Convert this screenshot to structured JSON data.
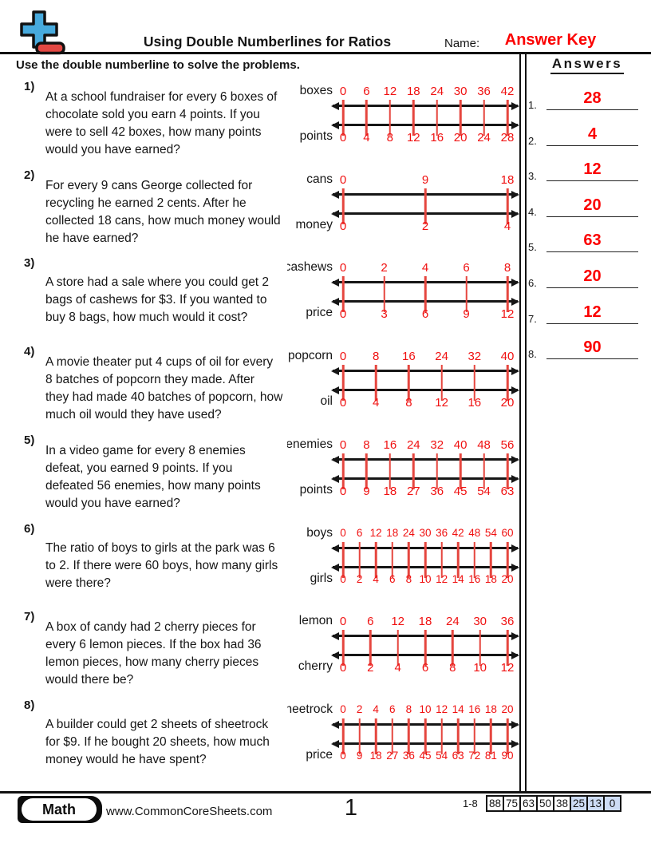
{
  "header": {
    "title": "Using Double Numberlines for Ratios",
    "name_label": "Name:",
    "name_value": "Answer Key",
    "instruction": "Use the double numberline to solve the problems."
  },
  "answers_panel": {
    "title": "Answers",
    "items": [
      {
        "num": "1.",
        "value": "28"
      },
      {
        "num": "2.",
        "value": "4"
      },
      {
        "num": "3.",
        "value": "12"
      },
      {
        "num": "4.",
        "value": "20"
      },
      {
        "num": "5.",
        "value": "63"
      },
      {
        "num": "6.",
        "value": "20"
      },
      {
        "num": "7.",
        "value": "12"
      },
      {
        "num": "8.",
        "value": "90"
      }
    ]
  },
  "problems": [
    {
      "num": "1)",
      "text": "At a school fundraiser for every 6 boxes of\nchocolate sold you earn 4 points. If you\nwere to sell 42 boxes, how many points\nwould you have earned?",
      "numberline": {
        "top_label": "boxes",
        "top_values": [
          "0",
          "6",
          "12",
          "18",
          "24",
          "30",
          "36",
          "42"
        ],
        "bottom_label": "points",
        "bottom_values": [
          "0",
          "4",
          "8",
          "12",
          "16",
          "20",
          "24",
          "28"
        ]
      }
    },
    {
      "num": "2)",
      "text": "For every 9 cans George collected for\nrecycling he earned 2 cents. After he\ncollected 18 cans, how much money would\nhe have earned?",
      "numberline": {
        "top_label": "cans",
        "top_values": [
          "0",
          "9",
          "18"
        ],
        "bottom_label": "money",
        "bottom_values": [
          "0",
          "2",
          "4"
        ]
      }
    },
    {
      "num": "3)",
      "text": "A store had a sale where you could get 2\nbags of cashews for $3. If you wanted to\nbuy 8 bags, how much would it cost?",
      "numberline": {
        "top_label": "cashews",
        "top_values": [
          "0",
          "2",
          "4",
          "6",
          "8"
        ],
        "bottom_label": "price",
        "bottom_values": [
          "0",
          "3",
          "6",
          "9",
          "12"
        ]
      }
    },
    {
      "num": "4)",
      "text": "A movie theater put 4 cups of oil for every\n8 batches of popcorn they made. After\nthey had made 40 batches of popcorn, how\nmuch oil would they have used?",
      "numberline": {
        "top_label": "popcorn",
        "top_values": [
          "0",
          "8",
          "16",
          "24",
          "32",
          "40"
        ],
        "bottom_label": "oil",
        "bottom_values": [
          "0",
          "4",
          "8",
          "12",
          "16",
          "20"
        ]
      }
    },
    {
      "num": "5)",
      "text": "In a video game for every 8 enemies\ndefeat, you earned 9 points. If you\ndefeated 56 enemies, how many points\nwould you have earned?",
      "numberline": {
        "top_label": "enemies",
        "top_values": [
          "0",
          "8",
          "16",
          "24",
          "32",
          "40",
          "48",
          "56"
        ],
        "bottom_label": "points",
        "bottom_values": [
          "0",
          "9",
          "18",
          "27",
          "36",
          "45",
          "54",
          "63"
        ]
      }
    },
    {
      "num": "6)",
      "text": "The ratio of boys to girls at the park was 6\nto 2. If there were 60 boys, how many girls\nwere there?",
      "numberline": {
        "top_label": "boys",
        "top_values": [
          "0",
          "6",
          "12",
          "18",
          "24",
          "30",
          "36",
          "42",
          "48",
          "54",
          "60"
        ],
        "bottom_label": "girls",
        "bottom_values": [
          "0",
          "2",
          "4",
          "6",
          "8",
          "10",
          "12",
          "14",
          "16",
          "18",
          "20"
        ]
      }
    },
    {
      "num": "7)",
      "text": "A box of candy had 2 cherry pieces for\nevery 6 lemon pieces. If the box had 36\nlemon pieces, how many cherry pieces\nwould there be?",
      "numberline": {
        "top_label": "lemon",
        "top_values": [
          "0",
          "6",
          "12",
          "18",
          "24",
          "30",
          "36"
        ],
        "bottom_label": "cherry",
        "bottom_values": [
          "0",
          "2",
          "4",
          "6",
          "8",
          "10",
          "12"
        ]
      }
    },
    {
      "num": "8)",
      "text": "A builder could get 2 sheets of sheetrock\nfor $9. If he bought 20 sheets, how much\nmoney would he have spent?",
      "numberline": {
        "top_label": "sheetrock",
        "top_values": [
          "0",
          "2",
          "4",
          "6",
          "8",
          "10",
          "12",
          "14",
          "16",
          "18",
          "20"
        ],
        "bottom_label": "price",
        "bottom_values": [
          "0",
          "9",
          "18",
          "27",
          "36",
          "45",
          "54",
          "63",
          "72",
          "81",
          "90"
        ]
      }
    }
  ],
  "footer": {
    "subject": "Math",
    "website": "www.CommonCoreSheets.com",
    "page_number": "1",
    "range_label": "1-8",
    "score_cells": [
      {
        "value": "88",
        "highlight": false
      },
      {
        "value": "75",
        "highlight": false
      },
      {
        "value": "63",
        "highlight": false
      },
      {
        "value": "50",
        "highlight": false
      },
      {
        "value": "38",
        "highlight": false
      },
      {
        "value": "25",
        "highlight": true
      },
      {
        "value": "13",
        "highlight": true
      },
      {
        "value": "0",
        "highlight": true
      }
    ]
  },
  "colors": {
    "answer_red": "#fb0000",
    "number_red": "#f01111",
    "tick_red": "#e5463f",
    "line_black": "#161616",
    "score_highlight_blue": "#cddcf5",
    "logo_blue": "#47aadd",
    "logo_red": "#e34843"
  },
  "icons": {
    "logo": "plus-minus-icon"
  }
}
